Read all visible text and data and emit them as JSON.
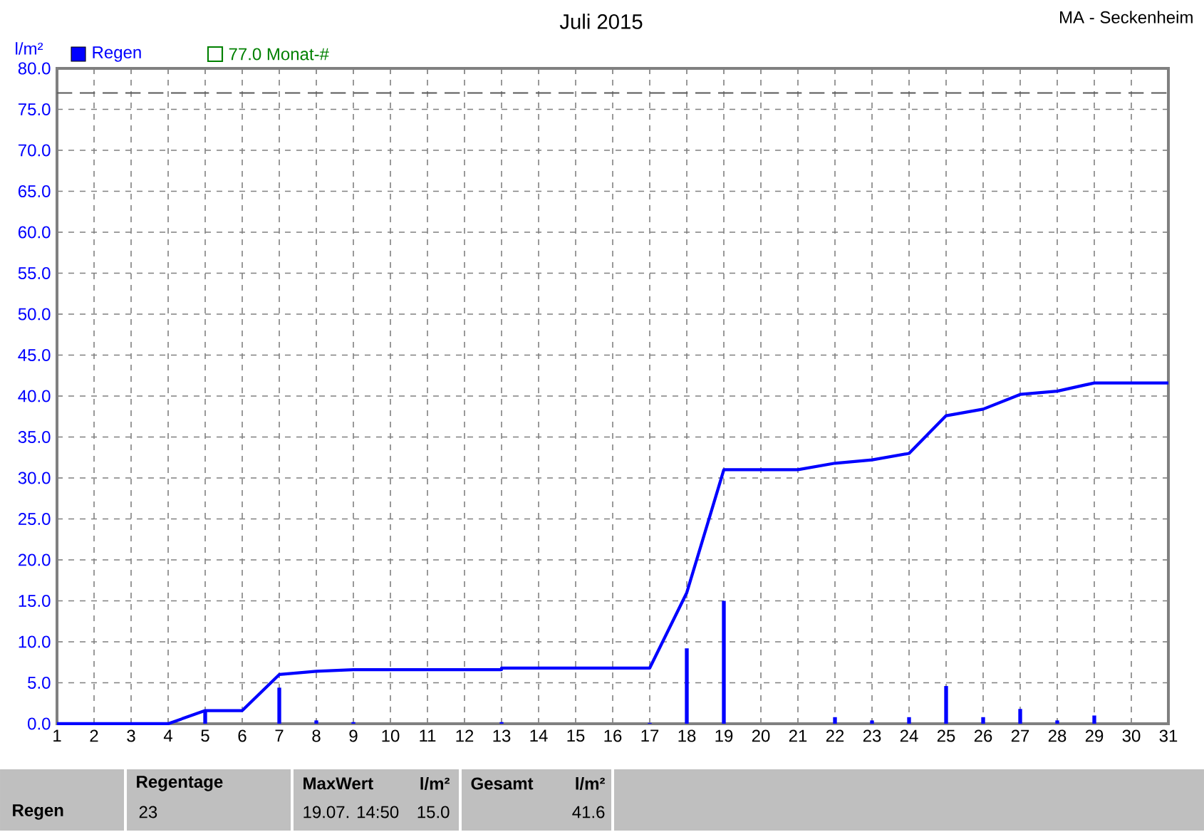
{
  "chart_data": {
    "type": "bar",
    "title": "Juli 2015",
    "subtitle": "MA - Seckenheim",
    "ylabel": "l/m²",
    "xlim": [
      1,
      31
    ],
    "xticks": [
      1,
      2,
      3,
      4,
      5,
      6,
      7,
      8,
      9,
      10,
      11,
      12,
      13,
      14,
      15,
      16,
      17,
      18,
      19,
      20,
      21,
      22,
      23,
      24,
      25,
      26,
      27,
      28,
      29,
      30,
      31
    ],
    "ylim": [
      0,
      80
    ],
    "yticks": [
      {
        "value": 0,
        "label": "0.0"
      },
      {
        "value": 5,
        "label": "5.0"
      },
      {
        "value": 10,
        "label": "10.0"
      },
      {
        "value": 15,
        "label": "15.0"
      },
      {
        "value": 20,
        "label": "20.0"
      },
      {
        "value": 25,
        "label": "25.0"
      },
      {
        "value": 30,
        "label": "30.0"
      },
      {
        "value": 35,
        "label": "35.0"
      },
      {
        "value": 40,
        "label": "40.0"
      },
      {
        "value": 45,
        "label": "45.0"
      },
      {
        "value": 50,
        "label": "50.0"
      },
      {
        "value": 55,
        "label": "55.0"
      },
      {
        "value": 60,
        "label": "60.0"
      },
      {
        "value": 65,
        "label": "65.0"
      },
      {
        "value": 70,
        "label": "70.0"
      },
      {
        "value": 75,
        "label": "75.0"
      },
      {
        "value": 80,
        "label": "80.0"
      }
    ],
    "grid": true,
    "legend": "top left",
    "series": [
      {
        "name": "Regen",
        "color": "#0000ff",
        "x": [
          5,
          7,
          8,
          9,
          13,
          17,
          18,
          19,
          22,
          23,
          24,
          25,
          26,
          27,
          28,
          29
        ],
        "values": [
          1.6,
          4.4,
          0.4,
          0.2,
          0.2,
          0.1,
          9.2,
          15.0,
          0.8,
          0.4,
          0.8,
          4.6,
          0.8,
          1.8,
          0.4,
          1.0
        ]
      },
      {
        "type": "line",
        "color": "#0000ff",
        "x": [
          1,
          4,
          5,
          6,
          7,
          8,
          9,
          13,
          13,
          17,
          18,
          19,
          21,
          22,
          23,
          24,
          25,
          26,
          27,
          28,
          29,
          31
        ],
        "values": [
          0,
          0,
          1.6,
          1.6,
          6.0,
          6.4,
          6.6,
          6.6,
          6.8,
          6.8,
          16.0,
          31.0,
          31.0,
          31.8,
          32.2,
          33.0,
          37.6,
          38.4,
          40.2,
          40.6,
          41.6,
          41.6
        ]
      }
    ],
    "ref_lines": [
      {
        "axis": "y",
        "value": 77,
        "label": "77.0 Monat-#",
        "color": "#595959",
        "line_style": "dashed"
      }
    ],
    "annotations": [
      "Regen",
      "Regentage",
      "23",
      "MaxWert",
      "l/m²",
      "19.07.  14:50",
      "15.0",
      "Gesamt",
      "l/m²",
      "41.6"
    ]
  }
}
